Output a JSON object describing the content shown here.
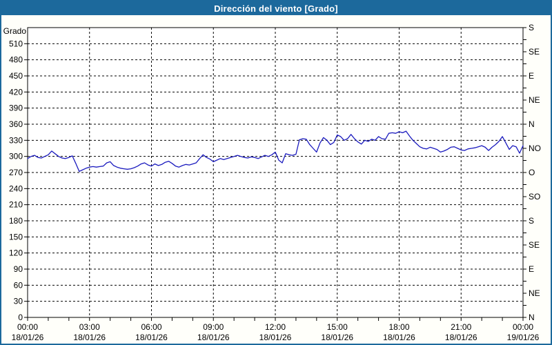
{
  "window": {
    "title": "Dirección del viento [Grado]"
  },
  "colors": {
    "titlebar_bg": "#1c699c",
    "titlebar_text": "#ffffff",
    "frame_border": "#1c699c",
    "background": "#fffffa",
    "plot_background": "#ffffff",
    "plot_border": "#000000",
    "grid": "#000000",
    "tick_text": "#000000",
    "line": "#1a1abe"
  },
  "chart_data": {
    "type": "line",
    "title": "Dirección del viento [Grado]",
    "unit": "Grado",
    "ylim": [
      0,
      540
    ],
    "xlim_hours": [
      0,
      24
    ],
    "grid": "dashed",
    "y_left": {
      "axis_label": "Grado",
      "tick_step": 30,
      "labeled_ticks": [
        0,
        30,
        60,
        90,
        120,
        150,
        180,
        210,
        240,
        270,
        300,
        330,
        360,
        390,
        420,
        450,
        480,
        510
      ]
    },
    "y_right": {
      "tick_step": 22.5,
      "compass_labels": [
        {
          "value": 540,
          "label": "S"
        },
        {
          "value": 495,
          "label": "SE"
        },
        {
          "value": 450,
          "label": "E"
        },
        {
          "value": 405,
          "label": "NE"
        },
        {
          "value": 360,
          "label": "N"
        },
        {
          "value": 315,
          "label": "NO"
        },
        {
          "value": 270,
          "label": "O"
        },
        {
          "value": 225,
          "label": "SO"
        },
        {
          "value": 180,
          "label": "S"
        },
        {
          "value": 135,
          "label": "SE"
        },
        {
          "value": 90,
          "label": "E"
        },
        {
          "value": 45,
          "label": "NE"
        },
        {
          "value": 0,
          "label": "N"
        }
      ]
    },
    "x_axis": {
      "minor_tick_hours": 1,
      "major_tick_hours": 3,
      "labels": [
        {
          "hour": 0,
          "time": "00:00",
          "date": "18/01/26"
        },
        {
          "hour": 3,
          "time": "03:00",
          "date": "18/01/26"
        },
        {
          "hour": 6,
          "time": "06:00",
          "date": "18/01/26"
        },
        {
          "hour": 9,
          "time": "09:00",
          "date": "18/01/26"
        },
        {
          "hour": 12,
          "time": "12:00",
          "date": "18/01/26"
        },
        {
          "hour": 15,
          "time": "15:00",
          "date": "18/01/26"
        },
        {
          "hour": 18,
          "time": "18:00",
          "date": "18/01/26"
        },
        {
          "hour": 21,
          "time": "21:00",
          "date": "18/01/26"
        },
        {
          "hour": 24,
          "time": "00:00",
          "date": "19/01/26"
        }
      ]
    },
    "series": {
      "name": "Dirección del viento",
      "start_hour": 0,
      "sample_step_minutes": 10,
      "values": [
        296,
        300,
        302,
        298,
        297,
        300,
        303,
        310,
        305,
        300,
        297,
        296,
        298,
        301,
        287,
        272,
        275,
        278,
        280,
        281,
        280,
        281,
        282,
        288,
        290,
        283,
        280,
        278,
        277,
        276,
        277,
        279,
        282,
        286,
        288,
        284,
        282,
        286,
        283,
        285,
        289,
        291,
        287,
        282,
        280,
        283,
        285,
        284,
        286,
        288,
        296,
        303,
        298,
        295,
        290,
        293,
        296,
        294,
        296,
        298,
        300,
        302,
        300,
        298,
        297,
        299,
        298,
        296,
        299,
        302,
        300,
        303,
        308,
        293,
        288,
        305,
        303,
        302,
        304,
        331,
        333,
        332,
        322,
        315,
        308,
        325,
        335,
        330,
        322,
        326,
        340,
        337,
        330,
        333,
        341,
        333,
        327,
        323,
        330,
        328,
        332,
        330,
        337,
        333,
        332,
        343,
        344,
        343,
        346,
        344,
        347,
        338,
        330,
        324,
        318,
        315,
        314,
        317,
        315,
        313,
        308,
        310,
        313,
        317,
        318,
        315,
        312,
        311,
        314,
        315,
        316,
        318,
        320,
        317,
        311,
        317,
        322,
        328,
        337,
        325,
        313,
        320,
        318,
        306,
        320
      ]
    }
  }
}
